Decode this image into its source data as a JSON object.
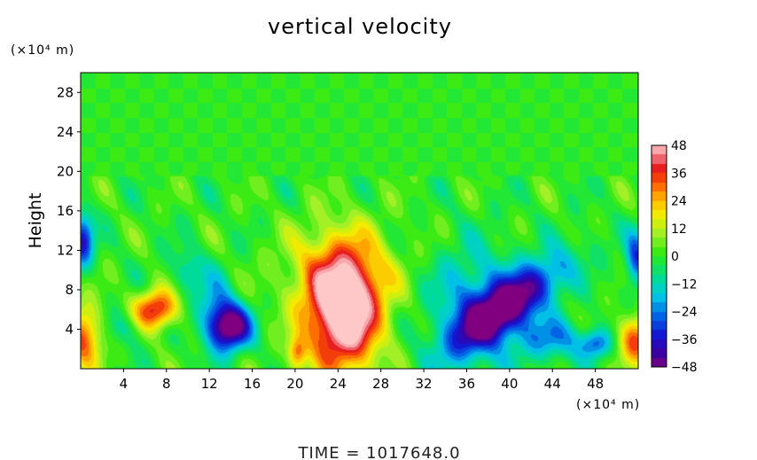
{
  "chart_data": {
    "type": "heatmap",
    "title": "vertical velocity",
    "ylabel": "Height",
    "x_unit_label": "(×10⁴ m)",
    "y_unit_label": "(×10⁴ m)",
    "footer": "TIME  =  1017648.0",
    "xlim": [
      0,
      52
    ],
    "ylim": [
      0,
      30
    ],
    "x_ticks": [
      4,
      8,
      12,
      16,
      20,
      24,
      28,
      32,
      36,
      40,
      44,
      48
    ],
    "y_ticks": [
      4,
      8,
      12,
      16,
      20,
      24,
      28
    ],
    "colorbar": {
      "min": -48,
      "max": 48,
      "ticks": [
        48,
        36,
        24,
        12,
        0,
        -12,
        -24,
        -36,
        -48
      ],
      "tick_labels": [
        "48",
        "36",
        "24",
        "12",
        "0",
        "−12",
        "−24",
        "−36",
        "−48"
      ]
    },
    "field_features": [
      {
        "kind": "updraft",
        "x": 24,
        "y": 5.5,
        "peak": 48
      },
      {
        "kind": "downdraft",
        "x": 40,
        "y": 7,
        "peak": -45
      },
      {
        "kind": "downdraft",
        "x": 14,
        "y": 4,
        "peak": -44
      },
      {
        "kind": "updraft",
        "x": 7,
        "y": 6,
        "peak": 36
      },
      {
        "kind": "updraft",
        "x": 0.5,
        "y": 3,
        "peak": 30
      },
      {
        "kind": "updraft",
        "x": 51.5,
        "y": 3,
        "peak": 30
      }
    ]
  }
}
